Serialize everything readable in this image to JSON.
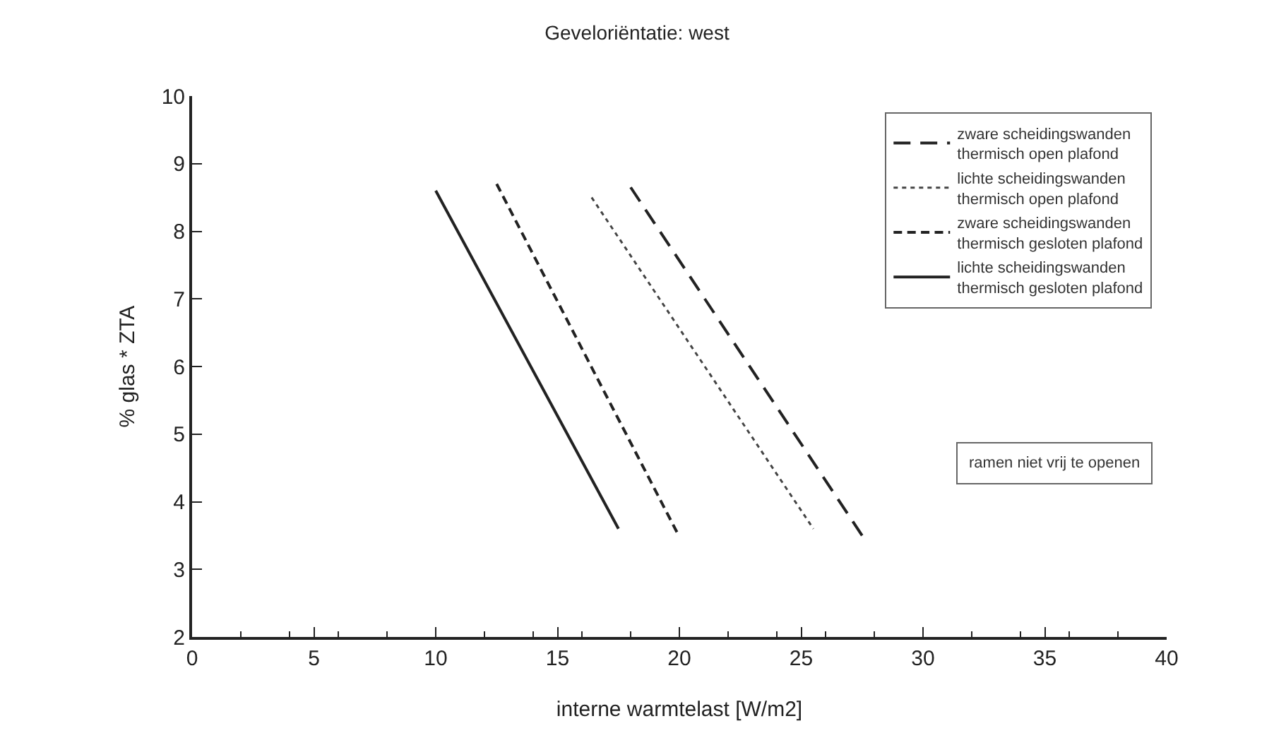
{
  "chart_data": {
    "type": "line",
    "title": "Geveloriëntatie: west",
    "xlabel": "interne warmtelast [W/m2]",
    "ylabel": "% glas * ZTA",
    "xlim": [
      0,
      40
    ],
    "xticks": [
      0,
      5,
      10,
      15,
      20,
      25,
      30,
      35,
      40
    ],
    "ylim": [
      2,
      10
    ],
    "yticks": [
      2,
      3,
      4,
      5,
      6,
      7,
      8,
      9,
      10
    ],
    "grid": false,
    "legend": "top right",
    "marker": "none",
    "series": [
      {
        "name": "zware scheidingswanden\nthermisch open plafond",
        "color": "#222222",
        "line_style": "dashed",
        "x": [
          18,
          27.5
        ],
        "values": [
          8.65,
          3.5
        ]
      },
      {
        "name": "lichte scheidingswanden\nthermisch open plafond",
        "color": "#444444",
        "line_style": "dotted",
        "x": [
          16.4,
          25.5
        ],
        "values": [
          8.5,
          3.6
        ]
      },
      {
        "name": "zware scheidingswanden\nthermisch gesloten plafond",
        "color": "#222222",
        "line_style": "dashed",
        "x": [
          12.5,
          19.9
        ],
        "values": [
          8.7,
          3.55
        ]
      },
      {
        "name": "lichte scheidingswanden\nthermisch gesloten plafond",
        "color": "#222222",
        "line_style": "solid",
        "x": [
          10,
          17.5
        ],
        "values": [
          8.6,
          3.6
        ]
      }
    ],
    "annotations": [
      "ramen niet vrij te openen"
    ]
  }
}
